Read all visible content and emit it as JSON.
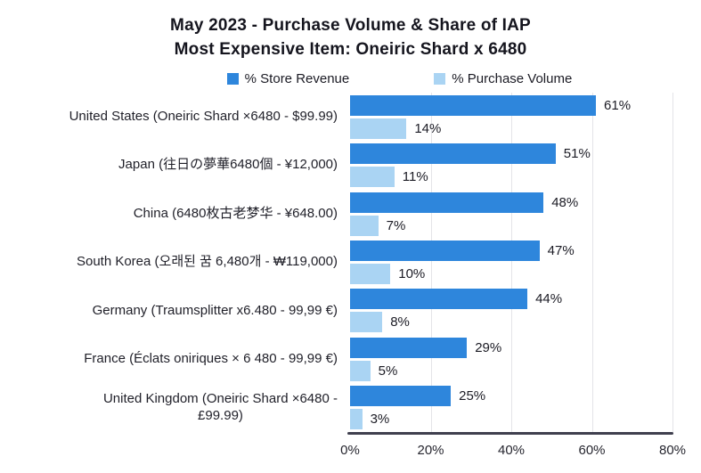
{
  "chart_data": {
    "type": "bar",
    "orientation": "horizontal",
    "title_line1": "May 2023 - Purchase Volume & Share of IAP",
    "title_line2": "Most Expensive Item: Oneiric Shard x 6480",
    "categories": [
      "United States (Oneiric Shard ×6480 - $99.99)",
      "Japan (往日の夢華6480個 - ¥12,000)",
      "China (6480枚古老梦华 - ¥648.00)",
      "South Korea (오래된 꿈 6,480개 - ₩119,000)",
      "Germany (Traumsplitter x6.480 - 99,99 €)",
      "France (Éclats oniriques × 6 480 - 99,99 €)",
      "United Kingdom (Oneiric Shard ×6480 -\n£99.99)"
    ],
    "series": [
      {
        "name": "% Store Revenue",
        "color": "#2e86dc",
        "values": [
          61,
          51,
          48,
          47,
          44,
          29,
          25
        ]
      },
      {
        "name": "% Purchase Volume",
        "color": "#aad4f3",
        "values": [
          14,
          11,
          7,
          10,
          8,
          5,
          3
        ]
      }
    ],
    "value_suffix": "%",
    "xlim": [
      0,
      80
    ],
    "x_ticks": [
      {
        "value": 0,
        "label": "0%"
      },
      {
        "value": 20,
        "label": "20%"
      },
      {
        "value": 40,
        "label": "40%"
      },
      {
        "value": 60,
        "label": "60%"
      },
      {
        "value": 80,
        "label": "80%"
      }
    ],
    "grid": true,
    "legend_position": "top",
    "colors": {
      "background": "#ffffff",
      "text": "#1b1b24",
      "gridline": "#e4e4e8",
      "axis_line": "#3f3f4e"
    }
  }
}
